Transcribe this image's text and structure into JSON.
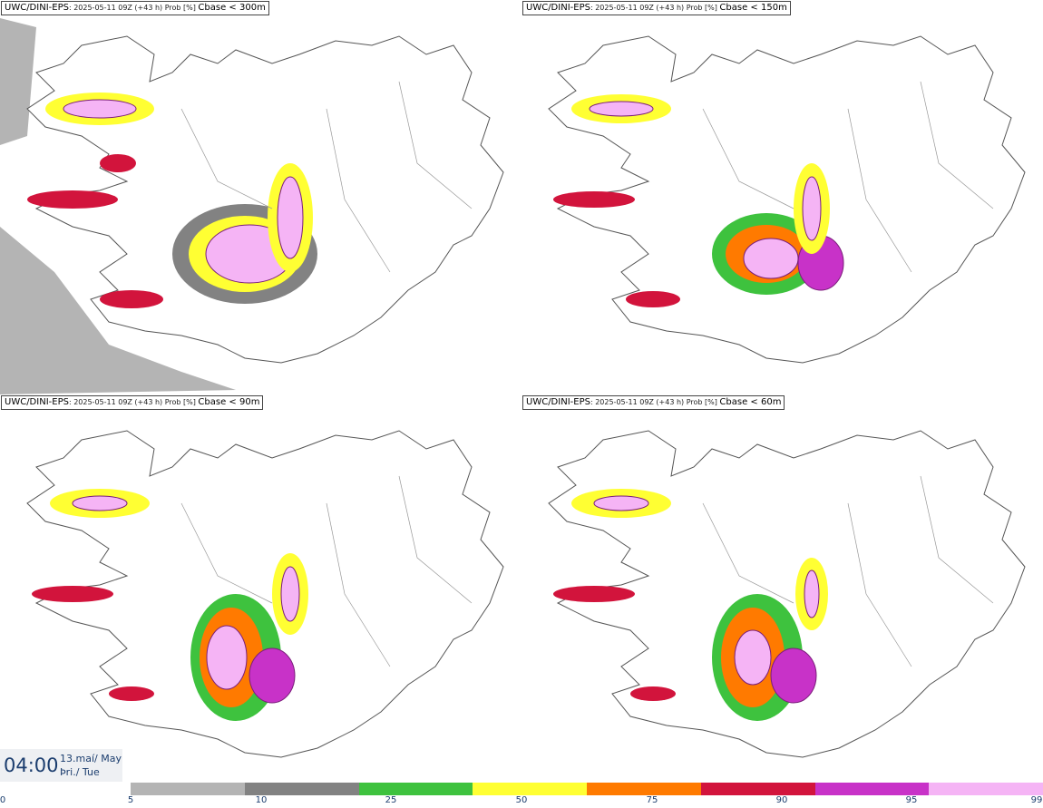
{
  "panels": [
    {
      "model": "UWC/DINI-EPS",
      "meta": ": 2025-05-11 09Z (+43 h) Prob [%] ",
      "param": "Cbase < 300m"
    },
    {
      "model": "UWC/DINI-EPS",
      "meta": ": 2025-05-11 09Z (+43 h) Prob [%] ",
      "param": "Cbase < 150m"
    },
    {
      "model": "UWC/DINI-EPS",
      "meta": ": 2025-05-11 09Z (+43 h) Prob [%] ",
      "param": "Cbase < 90m"
    },
    {
      "model": "UWC/DINI-EPS",
      "meta": ": 2025-05-11 09Z (+43 h) Prob [%] ",
      "param": "Cbase < 60m"
    }
  ],
  "valid_time": {
    "clock": "04:00",
    "date_line1": "13.maí/ May",
    "date_line2": "Þri./ Tue"
  },
  "legend": {
    "ticks": [
      "0",
      "5",
      "10",
      "25",
      "50",
      "75",
      "90",
      "95",
      "99"
    ],
    "colors": [
      "#b4b4b4",
      "#828282",
      "#3ec23e",
      "#ffff33",
      "#ff7a00",
      "#d2143c",
      "#c832c8",
      "#f5b4f5"
    ]
  }
}
